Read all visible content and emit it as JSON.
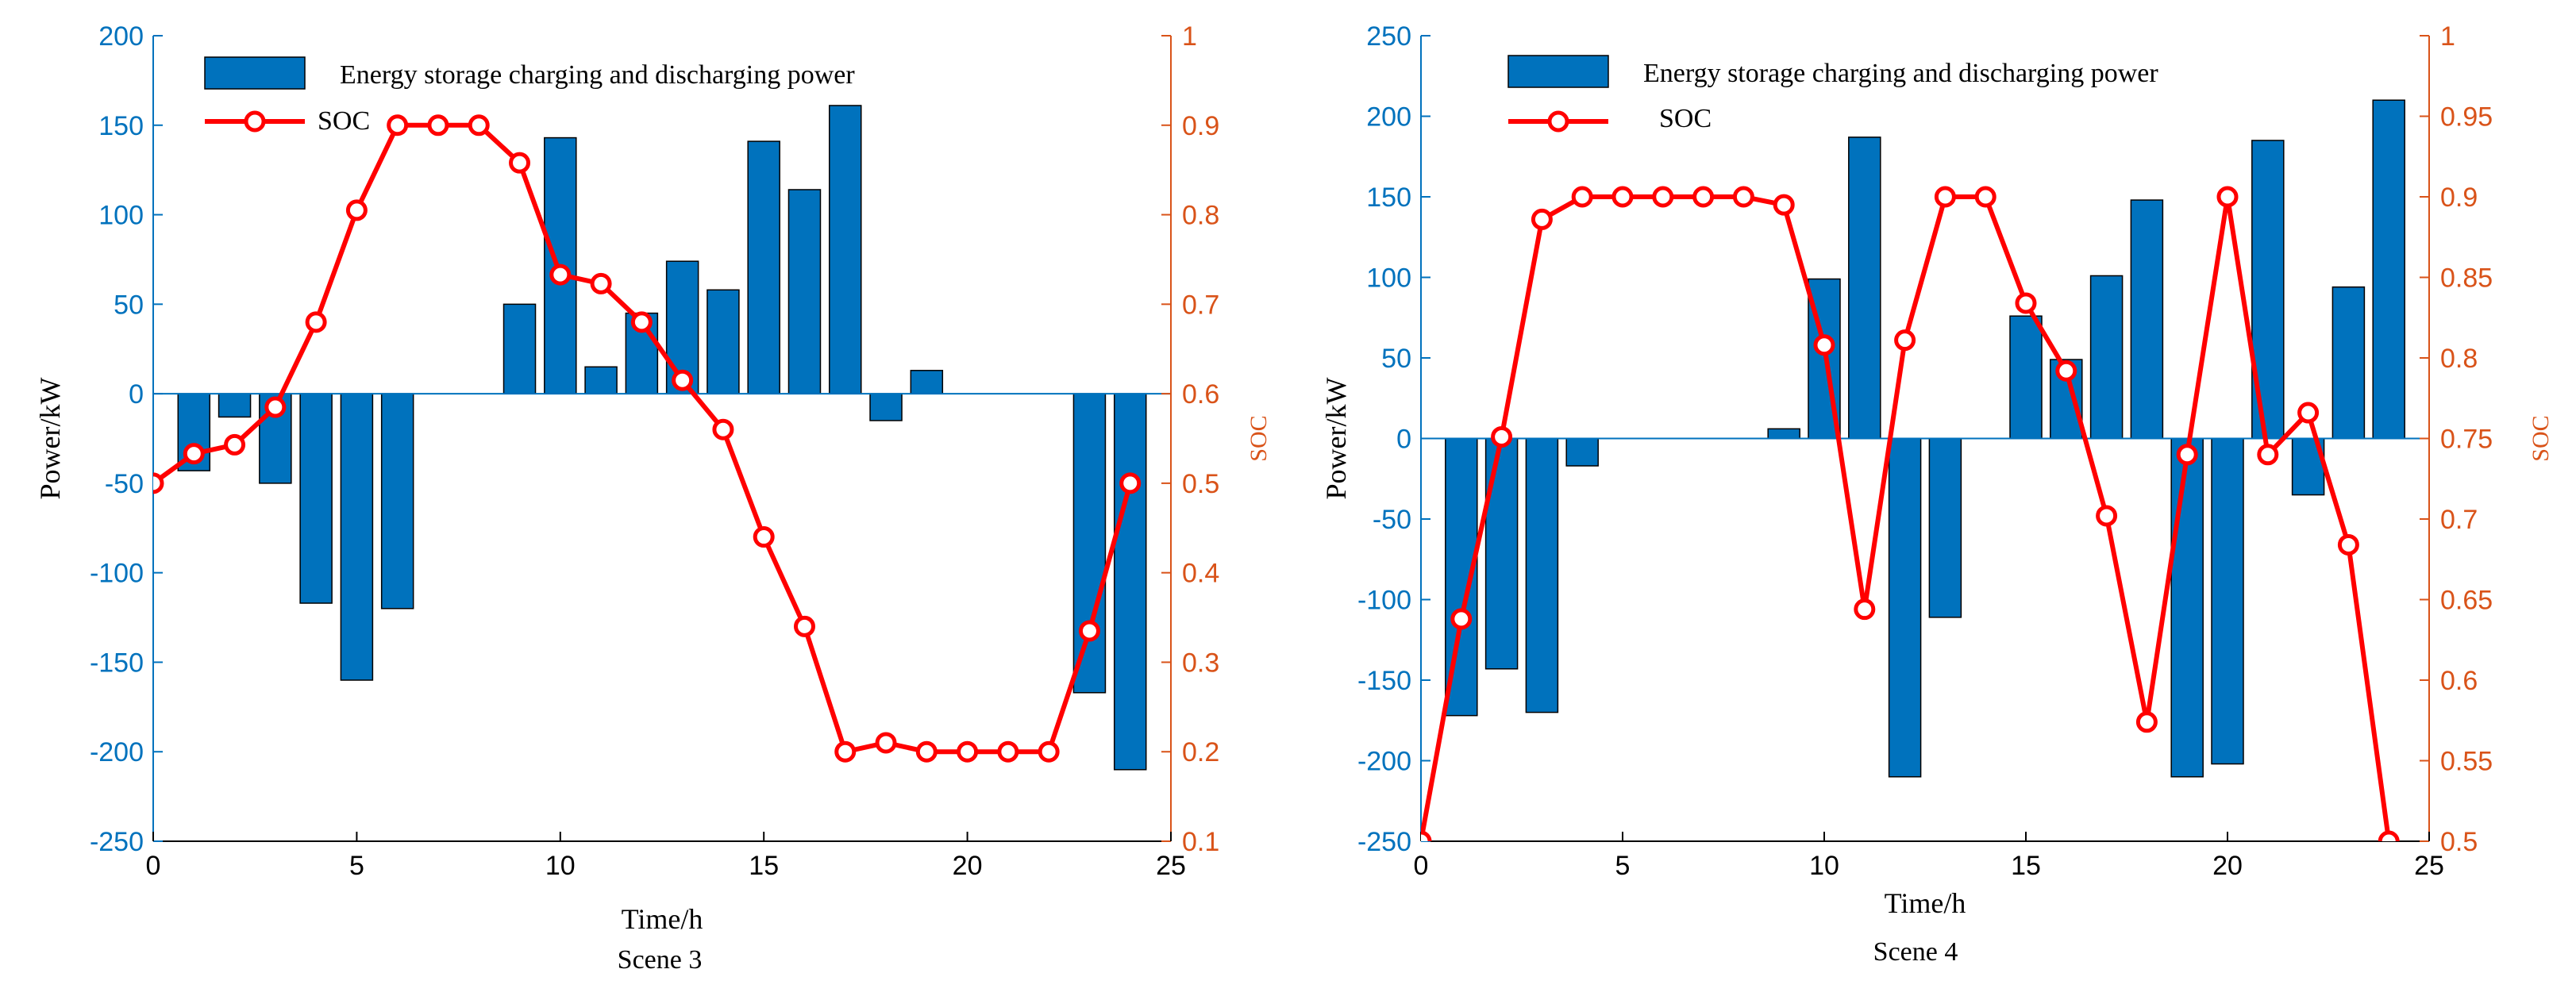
{
  "chart_data": [
    {
      "type": "bar",
      "caption": "Scene 3",
      "xlabel": "Time/h",
      "ylabel": "Power/kW",
      "ylabel_right": "SOC",
      "xlim": [
        0,
        25
      ],
      "ylim": [
        -250,
        200
      ],
      "ylim_right": [
        0.1,
        1
      ],
      "x_ticks": [
        0,
        5,
        10,
        15,
        20,
        25
      ],
      "y_ticks": [
        -250,
        -200,
        -150,
        -100,
        -50,
        0,
        50,
        100,
        150,
        200
      ],
      "y_ticks_right": [
        0.1,
        0.2,
        0.3,
        0.4,
        0.5,
        0.6,
        0.7,
        0.8,
        0.9,
        1
      ],
      "legend": [
        "Energy storage charging and discharging power",
        "SOC"
      ],
      "legend_position": "top-left",
      "colors": {
        "bar": "#0072BD",
        "soc": "#FF0000",
        "left_axis": "#0072BD",
        "right_axis": "#D95319"
      },
      "series": [
        {
          "name": "Energy storage charging and discharging power",
          "axis": "left",
          "x": [
            1,
            2,
            3,
            4,
            5,
            6,
            7,
            8,
            9,
            10,
            11,
            12,
            13,
            14,
            15,
            16,
            17,
            18,
            19,
            20,
            21,
            22,
            23,
            24
          ],
          "values": [
            -43,
            -13,
            -50,
            -117,
            -160,
            -120,
            0,
            0,
            50,
            143,
            15,
            45,
            74,
            58,
            141,
            114,
            161,
            -15,
            13,
            0,
            0,
            0,
            -167,
            -210
          ]
        },
        {
          "name": "SOC",
          "axis": "right",
          "x": [
            0,
            1,
            2,
            3,
            4,
            5,
            6,
            7,
            8,
            9,
            10,
            11,
            12,
            13,
            14,
            15,
            16,
            17,
            18,
            19,
            20,
            21,
            22,
            23,
            24
          ],
          "values": [
            0.5,
            0.533,
            0.543,
            0.585,
            0.68,
            0.805,
            0.9,
            0.9,
            0.9,
            0.858,
            0.733,
            0.723,
            0.68,
            0.615,
            0.56,
            0.44,
            0.34,
            0.2,
            0.21,
            0.2,
            0.2,
            0.2,
            0.2,
            0.335,
            0.5
          ]
        }
      ]
    },
    {
      "type": "bar",
      "caption": "Scene 4",
      "xlabel": "Time/h",
      "ylabel": "Power/kW",
      "ylabel_right": "SOC",
      "xlim": [
        0,
        25
      ],
      "ylim": [
        -250,
        250
      ],
      "ylim_right": [
        0.5,
        1
      ],
      "x_ticks": [
        0,
        5,
        10,
        15,
        20,
        25
      ],
      "y_ticks": [
        -250,
        -200,
        -150,
        -100,
        -50,
        0,
        50,
        100,
        150,
        200,
        250
      ],
      "y_ticks_right": [
        0.5,
        0.55,
        0.6,
        0.65,
        0.7,
        0.75,
        0.8,
        0.85,
        0.9,
        0.95,
        1
      ],
      "legend": [
        "Energy storage charging and discharging power",
        "SOC"
      ],
      "legend_position": "top-left",
      "colors": {
        "bar": "#0072BD",
        "soc": "#FF0000",
        "left_axis": "#0072BD",
        "right_axis": "#D95319"
      },
      "series": [
        {
          "name": "Energy storage charging and discharging power",
          "axis": "left",
          "x": [
            1,
            2,
            3,
            4,
            5,
            6,
            7,
            8,
            9,
            10,
            11,
            12,
            13,
            14,
            15,
            16,
            17,
            18,
            19,
            20,
            21,
            22,
            23,
            24
          ],
          "values": [
            -172,
            -143,
            -170,
            -17,
            0,
            0,
            0,
            0,
            6,
            99,
            187,
            -210,
            -111,
            0,
            76,
            49,
            101,
            148,
            -210,
            -202,
            185,
            -35,
            94,
            210
          ]
        },
        {
          "name": "SOC",
          "axis": "right",
          "x": [
            0,
            1,
            2,
            3,
            4,
            5,
            6,
            7,
            8,
            9,
            10,
            11,
            12,
            13,
            14,
            15,
            16,
            17,
            18,
            19,
            20,
            21,
            22,
            23,
            24
          ],
          "values": [
            0.5,
            0.638,
            0.751,
            0.886,
            0.9,
            0.9,
            0.9,
            0.9,
            0.9,
            0.895,
            0.808,
            0.644,
            0.811,
            0.9,
            0.9,
            0.834,
            0.792,
            0.702,
            0.574,
            0.74,
            0.9,
            0.74,
            0.766,
            0.684,
            0.5
          ]
        }
      ]
    }
  ]
}
